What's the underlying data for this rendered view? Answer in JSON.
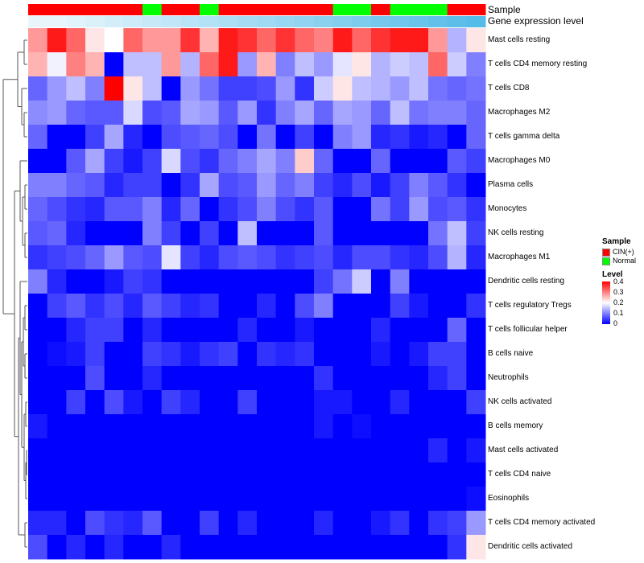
{
  "chart_data": {
    "type": "heatmap",
    "annotations": {
      "sample_title": "Sample",
      "level_title": "Gene expression level"
    },
    "sample_groups": [
      "CIN(+)",
      "CIN(+)",
      "CIN(+)",
      "CIN(+)",
      "CIN(+)",
      "CIN(+)",
      "Normal",
      "CIN(+)",
      "CIN(+)",
      "Normal",
      "CIN(+)",
      "CIN(+)",
      "CIN(+)",
      "CIN(+)",
      "CIN(+)",
      "CIN(+)",
      "Normal",
      "Normal",
      "CIN(+)",
      "Normal",
      "Normal",
      "Normal",
      "CIN(+)",
      "CIN(+)"
    ],
    "sample_levels": [
      0.06,
      0.06,
      0.07,
      0.08,
      0.09,
      0.1,
      0.11,
      0.12,
      0.13,
      0.14,
      0.15,
      0.16,
      0.17,
      0.18,
      0.19,
      0.2,
      0.21,
      0.22,
      0.23,
      0.24,
      0.25,
      0.26,
      0.27,
      0.28
    ],
    "rows": [
      "Mast cells resting",
      "T cells CD4 memory resting",
      "T cells CD8",
      "Macrophages M2",
      "T cells gamma delta",
      "Macrophages M0",
      "Plasma cells",
      "Monocytes",
      "NK cells resting",
      "Macrophages M1",
      "Dendritic cells resting",
      "T cells regulatory  Tregs",
      "T cells follicular helper",
      "B cells naive",
      "Neutrophils",
      "NK cells activated",
      "B cells memory",
      "Mast cells activated",
      "T cells CD4 naive",
      "Eosinophils",
      "T cells CD4 memory activated",
      "Dendritic cells activated"
    ],
    "values": [
      [
        0.28,
        0.38,
        0.32,
        0.22,
        0.2,
        0.32,
        0.28,
        0.28,
        0.36,
        0.26,
        0.38,
        0.36,
        0.32,
        0.36,
        0.32,
        0.3,
        0.38,
        0.32,
        0.36,
        0.38,
        0.38,
        0.28,
        0.14,
        0.22
      ],
      [
        0.26,
        0.19,
        0.3,
        0.26,
        0.0,
        0.15,
        0.15,
        0.28,
        0.14,
        0.32,
        0.38,
        0.12,
        0.26,
        0.1,
        0.15,
        0.12,
        0.18,
        0.22,
        0.14,
        0.16,
        0.15,
        0.32,
        0.16,
        0.1
      ],
      [
        0.08,
        0.12,
        0.15,
        0.1,
        0.4,
        0.22,
        0.15,
        0.0,
        0.12,
        0.09,
        0.05,
        0.05,
        0.06,
        0.12,
        0.04,
        0.16,
        0.22,
        0.15,
        0.14,
        0.12,
        0.15,
        0.09,
        0.08,
        0.09
      ],
      [
        0.11,
        0.12,
        0.08,
        0.07,
        0.07,
        0.17,
        0.06,
        0.07,
        0.13,
        0.12,
        0.07,
        0.12,
        0.04,
        0.1,
        0.13,
        0.08,
        0.13,
        0.12,
        0.08,
        0.15,
        0.09,
        0.1,
        0.1,
        0.08
      ],
      [
        0.08,
        0.0,
        0.0,
        0.05,
        0.13,
        0.03,
        0.0,
        0.06,
        0.07,
        0.08,
        0.06,
        0.0,
        0.09,
        0.0,
        0.05,
        0.0,
        0.1,
        0.12,
        0.03,
        0.04,
        0.02,
        0.03,
        0.0,
        0.08
      ],
      [
        0.0,
        0.0,
        0.07,
        0.13,
        0.05,
        0.02,
        0.05,
        0.17,
        0.06,
        0.04,
        0.08,
        0.1,
        0.13,
        0.1,
        0.24,
        0.08,
        0.0,
        0.0,
        0.08,
        0.0,
        0.0,
        0.0,
        0.07,
        0.05
      ],
      [
        0.1,
        0.1,
        0.08,
        0.07,
        0.03,
        0.05,
        0.05,
        0.0,
        0.04,
        0.13,
        0.06,
        0.07,
        0.12,
        0.08,
        0.1,
        0.05,
        0.03,
        0.06,
        0.02,
        0.05,
        0.1,
        0.07,
        0.04,
        0.0
      ],
      [
        0.08,
        0.06,
        0.04,
        0.03,
        0.07,
        0.07,
        0.1,
        0.03,
        0.08,
        0.0,
        0.04,
        0.06,
        0.1,
        0.06,
        0.04,
        0.07,
        0.0,
        0.0,
        0.09,
        0.05,
        0.12,
        0.06,
        0.07,
        0.04
      ],
      [
        0.07,
        0.08,
        0.03,
        0.0,
        0.0,
        0.0,
        0.1,
        0.05,
        0.0,
        0.05,
        0.0,
        0.15,
        0.0,
        0.0,
        0.0,
        0.07,
        0.0,
        0.0,
        0.0,
        0.0,
        0.0,
        0.09,
        0.15,
        0.05
      ],
      [
        0.04,
        0.05,
        0.06,
        0.08,
        0.12,
        0.07,
        0.06,
        0.18,
        0.05,
        0.03,
        0.06,
        0.07,
        0.06,
        0.04,
        0.05,
        0.06,
        0.03,
        0.06,
        0.06,
        0.04,
        0.03,
        0.06,
        0.14,
        0.03
      ],
      [
        0.1,
        0.03,
        0.0,
        0.0,
        0.02,
        0.05,
        0.04,
        0.0,
        0.0,
        0.0,
        0.0,
        0.0,
        0.0,
        0.0,
        0.0,
        0.05,
        0.09,
        0.16,
        0.0,
        0.1,
        0.0,
        0.0,
        0.0,
        0.0
      ],
      [
        0.0,
        0.05,
        0.07,
        0.04,
        0.06,
        0.03,
        0.07,
        0.05,
        0.03,
        0.04,
        0.0,
        0.0,
        0.03,
        0.0,
        0.06,
        0.1,
        0.0,
        0.0,
        0.0,
        0.05,
        0.02,
        0.0,
        0.0,
        0.04
      ],
      [
        0.0,
        0.0,
        0.03,
        0.05,
        0.05,
        0.0,
        0.03,
        0.0,
        0.0,
        0.0,
        0.0,
        0.03,
        0.0,
        0.0,
        0.02,
        0.0,
        0.0,
        0.0,
        0.03,
        0.0,
        0.0,
        0.0,
        0.08,
        0.0
      ],
      [
        0.0,
        0.01,
        0.02,
        0.05,
        0.0,
        0.0,
        0.05,
        0.04,
        0.02,
        0.04,
        0.05,
        0.0,
        0.04,
        0.03,
        0.04,
        0.0,
        0.0,
        0.0,
        0.02,
        0.0,
        0.02,
        0.05,
        0.05,
        0.0
      ],
      [
        0.0,
        0.0,
        0.0,
        0.06,
        0.0,
        0.0,
        0.03,
        0.0,
        0.0,
        0.0,
        0.0,
        0.0,
        0.0,
        0.0,
        0.0,
        0.04,
        0.0,
        0.0,
        0.0,
        0.0,
        0.0,
        0.03,
        0.05,
        0.0
      ],
      [
        0.0,
        0.0,
        0.05,
        0.0,
        0.06,
        0.02,
        0.0,
        0.05,
        0.03,
        0.0,
        0.0,
        0.05,
        0.0,
        0.0,
        0.0,
        0.02,
        0.02,
        0.0,
        0.0,
        0.03,
        0.0,
        0.0,
        0.0,
        0.05
      ],
      [
        0.02,
        0.0,
        0.0,
        0.0,
        0.0,
        0.0,
        0.0,
        0.0,
        0.0,
        0.0,
        0.0,
        0.0,
        0.0,
        0.0,
        0.0,
        0.02,
        0.0,
        0.01,
        0.0,
        0.0,
        0.0,
        0.0,
        0.0,
        0.0
      ],
      [
        0.0,
        0.0,
        0.0,
        0.0,
        0.0,
        0.0,
        0.0,
        0.0,
        0.0,
        0.0,
        0.0,
        0.0,
        0.0,
        0.0,
        0.0,
        0.0,
        0.0,
        0.0,
        0.0,
        0.0,
        0.0,
        0.03,
        0.0,
        0.02
      ],
      [
        0.0,
        0.0,
        0.0,
        0.0,
        0.0,
        0.0,
        0.0,
        0.0,
        0.0,
        0.0,
        0.0,
        0.0,
        0.0,
        0.0,
        0.0,
        0.0,
        0.0,
        0.0,
        0.0,
        0.0,
        0.0,
        0.0,
        0.0,
        0.0
      ],
      [
        0.0,
        0.0,
        0.0,
        0.0,
        0.0,
        0.0,
        0.0,
        0.0,
        0.0,
        0.0,
        0.0,
        0.0,
        0.0,
        0.0,
        0.0,
        0.0,
        0.0,
        0.0,
        0.0,
        0.0,
        0.0,
        0.0,
        0.0,
        0.01
      ],
      [
        0.03,
        0.03,
        0.0,
        0.06,
        0.04,
        0.03,
        0.07,
        0.0,
        0.0,
        0.05,
        0.0,
        0.03,
        0.0,
        0.0,
        0.0,
        0.03,
        0.0,
        0.0,
        0.02,
        0.04,
        0.0,
        0.04,
        0.05,
        0.12
      ],
      [
        0.06,
        0.0,
        0.03,
        0.0,
        0.03,
        0.0,
        0.0,
        0.03,
        0.0,
        0.0,
        0.0,
        0.0,
        0.0,
        0.0,
        0.0,
        0.0,
        0.0,
        0.0,
        0.0,
        0.0,
        0.0,
        0.0,
        0.04,
        0.22
      ]
    ],
    "legend": {
      "sample_title": "Sample",
      "sample_entries": [
        {
          "label": "CIN(+)",
          "color": "#ff0000"
        },
        {
          "label": "Normal",
          "color": "#00ff00"
        }
      ],
      "level_title": "Level",
      "level_ticks": [
        "0.4",
        "0.3",
        "0.2",
        "0.1",
        "0"
      ],
      "range": [
        0,
        0.4
      ]
    },
    "colors": {
      "low": "#0000ff",
      "mid": "#ffffff",
      "high": "#ff0000",
      "level_annotation_low": "#e8f6fc",
      "level_annotation_high": "#55bbe8"
    }
  }
}
